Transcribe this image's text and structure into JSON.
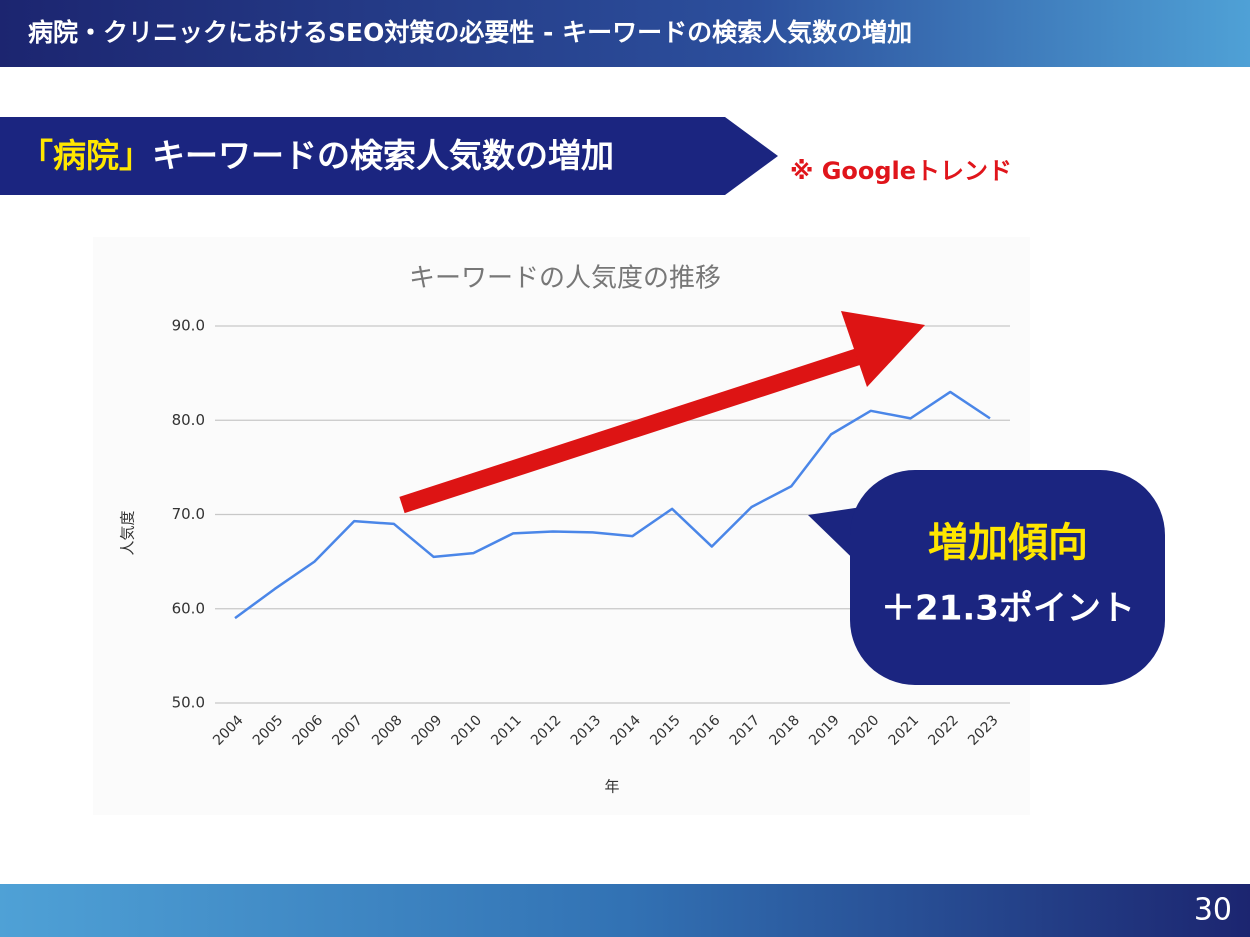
{
  "header": {
    "title": "病院・クリニックにおけるSEO対策の必要性 - キーワードの検索人気数の増加"
  },
  "subtitle": {
    "highlight": "「病院」",
    "text": "キーワードの検索人気数の増加"
  },
  "source_note": "※ Googleトレンド",
  "callout": {
    "title": "増加傾向",
    "text": "＋21.3ポイント"
  },
  "page_number": "30",
  "chart_data": {
    "type": "line",
    "title": "キーワードの人気度の推移",
    "x_label": "年",
    "y_label": "人気度",
    "categories": [
      "2004",
      "2005",
      "2006",
      "2007",
      "2008",
      "2009",
      "2010",
      "2011",
      "2012",
      "2013",
      "2014",
      "2015",
      "2016",
      "2017",
      "2018",
      "2019",
      "2020",
      "2021",
      "2022",
      "2023"
    ],
    "values": [
      59.0,
      62.1,
      65.0,
      69.3,
      69.0,
      65.5,
      65.9,
      68.0,
      68.2,
      68.1,
      67.7,
      70.6,
      66.6,
      70.8,
      73.0,
      78.5,
      81.0,
      80.2,
      83.0,
      80.2
    ],
    "color": "#4a86e8",
    "ylim": [
      50,
      90
    ],
    "yticks": [
      {
        "value": 50,
        "label": "50.0"
      },
      {
        "value": 60,
        "label": "60.0"
      },
      {
        "value": 70,
        "label": "70.0"
      },
      {
        "value": 80,
        "label": "80.0"
      },
      {
        "value": 90,
        "label": "90.0"
      }
    ],
    "grid": true
  }
}
